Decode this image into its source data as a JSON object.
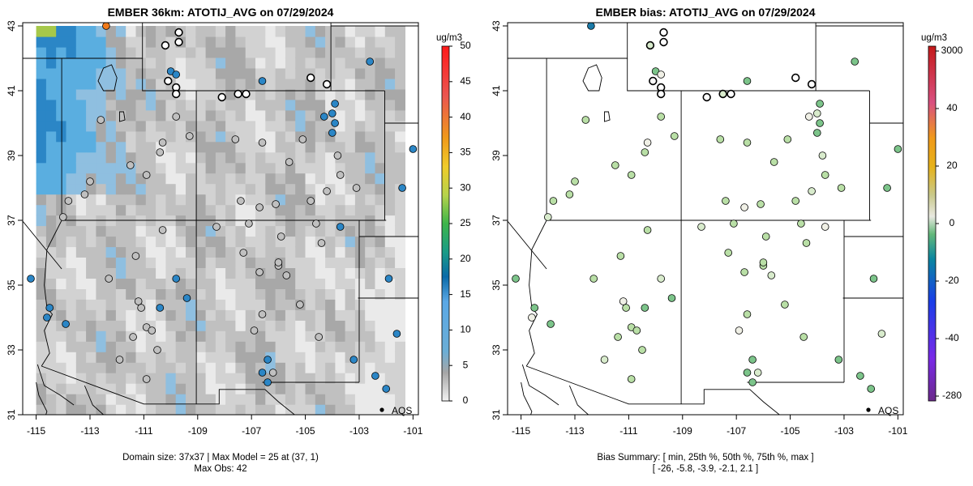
{
  "colors": {
    "background": "#ffffff",
    "panel_fill": "#ffffff",
    "line": "#000000",
    "grid_gray_light": "#ececec",
    "grid_gray_dark": "#7f7f7f",
    "obs_blue": "#5aaee0"
  },
  "chart_data": [
    {
      "type": "heatmap",
      "title": "EMBER 36km: ATOTIJ_AVG on 07/29/2024",
      "xlim": [
        -115.5,
        -100.8
      ],
      "ylim": [
        31.0,
        43.1
      ],
      "xticks": [
        -115,
        -113,
        -111,
        -109,
        -107,
        -105,
        -103,
        -101
      ],
      "xtick_labels": [
        "-115",
        "-113",
        "-111",
        "-109",
        "-107",
        "-105",
        "-103",
        "-101"
      ],
      "yticks": [
        31,
        33,
        35,
        37,
        39,
        41,
        43
      ],
      "ytick_labels": [
        "31",
        "33",
        "35",
        "37",
        "39",
        "41",
        "43"
      ],
      "legend_label": "AQS",
      "legend_position": "bottom-right",
      "colorbar": {
        "unit": "ug/m3",
        "ticks": [
          0,
          5,
          10,
          15,
          20,
          25,
          30,
          35,
          40,
          45,
          50
        ],
        "tick_labels": [
          "0",
          "5",
          "10",
          "15",
          "20",
          "25",
          "30",
          "35",
          "40",
          "45",
          "50"
        ],
        "range": [
          0,
          50
        ]
      },
      "footer": [
        "Domain size: 37x37 | Max Model = 25 at (37, 1)",
        "Max Obs: 42"
      ],
      "domain_size": [
        37,
        37
      ],
      "max_model": 25,
      "max_obs": 42,
      "grid_extent": {
        "lon": [
          -115.0,
          -101.3
        ],
        "lat": [
          31.0,
          43.0
        ]
      },
      "typical_model_value": 3,
      "observations": [
        [
          -112.4,
          43.0,
          42
        ],
        [
          -109.7,
          42.8,
          1
        ],
        [
          -109.7,
          42.5,
          1
        ],
        [
          -110.2,
          42.4,
          1
        ],
        [
          -110.0,
          41.6,
          14
        ],
        [
          -109.8,
          41.5,
          14
        ],
        [
          -110.1,
          41.3,
          1
        ],
        [
          -109.8,
          41.1,
          1
        ],
        [
          -109.8,
          40.9,
          1
        ],
        [
          -108.1,
          40.8,
          1
        ],
        [
          -107.5,
          40.9,
          1
        ],
        [
          -107.2,
          40.9,
          1
        ],
        [
          -106.6,
          41.3,
          12
        ],
        [
          -104.8,
          41.4,
          1
        ],
        [
          -104.2,
          41.2,
          1
        ],
        [
          -103.9,
          40.6,
          14
        ],
        [
          -104.3,
          40.2,
          14
        ],
        [
          -104.0,
          40.3,
          14
        ],
        [
          -103.9,
          40.0,
          14
        ],
        [
          -104.0,
          39.7,
          14
        ],
        [
          -102.6,
          41.9,
          12
        ],
        [
          -101.0,
          39.2,
          12
        ],
        [
          -101.4,
          38.0,
          12
        ],
        [
          -103.1,
          38.0,
          3
        ],
        [
          -104.2,
          37.9,
          3
        ],
        [
          -104.8,
          37.6,
          3
        ],
        [
          -106.1,
          37.5,
          3
        ],
        [
          -106.7,
          37.4,
          3
        ],
        [
          -107.4,
          37.6,
          3
        ],
        [
          -105.6,
          38.8,
          3
        ],
        [
          -105.1,
          39.5,
          3
        ],
        [
          -103.8,
          39.0,
          3
        ],
        [
          -103.7,
          38.4,
          3
        ],
        [
          -106.6,
          39.4,
          3
        ],
        [
          -107.6,
          39.5,
          3
        ],
        [
          -109.3,
          39.6,
          3
        ],
        [
          -109.8,
          40.2,
          3
        ],
        [
          -112.6,
          40.1,
          3
        ],
        [
          -110.3,
          39.4,
          3
        ],
        [
          -110.4,
          39.1,
          3
        ],
        [
          -111.5,
          38.7,
          3
        ],
        [
          -110.9,
          38.4,
          3
        ],
        [
          -113.0,
          38.2,
          3
        ],
        [
          -113.2,
          37.8,
          3
        ],
        [
          -113.8,
          37.6,
          3
        ],
        [
          -114.0,
          37.1,
          3
        ],
        [
          -110.3,
          36.7,
          3
        ],
        [
          -111.3,
          35.9,
          3
        ],
        [
          -112.3,
          35.2,
          3
        ],
        [
          -111.2,
          34.5,
          3
        ],
        [
          -111.1,
          34.3,
          3
        ],
        [
          -110.4,
          34.3,
          12
        ],
        [
          -109.8,
          35.2,
          12
        ],
        [
          -109.4,
          34.6,
          12
        ],
        [
          -110.9,
          33.7,
          3
        ],
        [
          -110.7,
          33.6,
          3
        ],
        [
          -111.4,
          33.4,
          3
        ],
        [
          -110.5,
          33.0,
          3
        ],
        [
          -110.9,
          32.1,
          3
        ],
        [
          -111.9,
          32.7,
          3
        ],
        [
          -114.6,
          34.0,
          12
        ],
        [
          -114.5,
          34.3,
          12
        ],
        [
          -113.9,
          33.8,
          12
        ],
        [
          -115.2,
          35.2,
          12
        ],
        [
          -106.7,
          35.4,
          3
        ],
        [
          -106.0,
          35.6,
          3
        ],
        [
          -105.7,
          35.3,
          3
        ],
        [
          -107.3,
          36.0,
          3
        ],
        [
          -106.0,
          35.7,
          3
        ],
        [
          -106.6,
          34.1,
          3
        ],
        [
          -105.2,
          34.4,
          3
        ],
        [
          -106.9,
          33.6,
          3
        ],
        [
          -104.5,
          33.4,
          3
        ],
        [
          -106.2,
          32.3,
          3
        ],
        [
          -106.4,
          32.0,
          12
        ],
        [
          -106.6,
          32.3,
          12
        ],
        [
          -106.4,
          32.7,
          12
        ],
        [
          -103.2,
          32.7,
          12
        ],
        [
          -102.4,
          32.2,
          12
        ],
        [
          -102.0,
          31.8,
          12
        ],
        [
          -101.6,
          33.5,
          12
        ],
        [
          -101.9,
          35.2,
          12
        ],
        [
          -103.7,
          36.8,
          12
        ],
        [
          -104.4,
          36.3,
          3
        ],
        [
          -104.6,
          36.9,
          3
        ],
        [
          -105.9,
          36.5,
          3
        ],
        [
          -107.1,
          36.9,
          3
        ],
        [
          -108.3,
          36.8,
          3
        ]
      ]
    },
    {
      "type": "scatter",
      "title": "EMBER bias: ATOTIJ_AVG on 07/29/2024",
      "xlim": [
        -115.5,
        -100.8
      ],
      "ylim": [
        31.0,
        43.1
      ],
      "xticks": [
        -115,
        -113,
        -111,
        -109,
        -107,
        -105,
        -103,
        -101
      ],
      "xtick_labels": [
        "-115",
        "-113",
        "-111",
        "-109",
        "-107",
        "-105",
        "-103",
        "-101"
      ],
      "yticks": [
        31,
        33,
        35,
        37,
        39,
        41,
        43
      ],
      "ytick_labels": [
        "31",
        "33",
        "35",
        "37",
        "39",
        "41",
        "43"
      ],
      "legend_label": "AQS",
      "legend_position": "bottom-right",
      "colorbar": {
        "unit": "ug/m3",
        "ticks": [
          3000,
          40,
          20,
          0,
          -20,
          -40,
          -280
        ],
        "tick_labels": [
          "3000",
          "40",
          "20",
          "0",
          "-20",
          "-40",
          "-280"
        ],
        "range": [
          -280,
          3000
        ]
      },
      "footer": [
        "Bias Summary: [ min, 25th %, 50th %, 75th %, max ]",
        "[ -26,   -5.8,   -3.9,   -2.1,   2.1 ]"
      ],
      "bias_summary": {
        "min": -26,
        "p25": -5.8,
        "p50": -3.9,
        "p75": -2.1,
        "max": 2.1
      }
    }
  ]
}
